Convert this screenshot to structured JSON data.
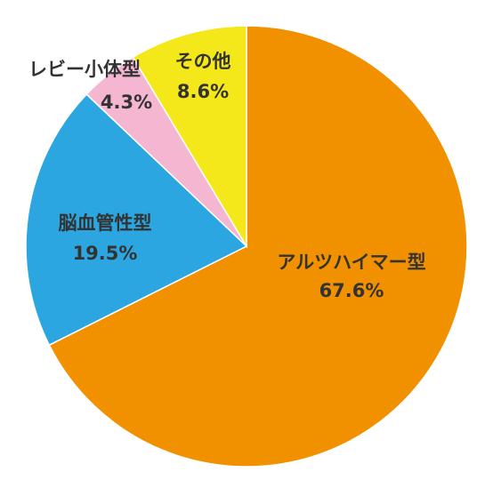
{
  "chart_data": {
    "type": "pie",
    "categories": [
      "アルツハイマー型",
      "脳血管性型",
      "レビー小体型",
      "その他"
    ],
    "values": [
      67.6,
      19.5,
      4.3,
      8.6
    ],
    "value_labels": [
      "67.6%",
      "19.5%",
      "4.3%",
      "8.6%"
    ],
    "colors": [
      "#f29100",
      "#2ca6e0",
      "#f5b6d2",
      "#f5e81a"
    ]
  }
}
